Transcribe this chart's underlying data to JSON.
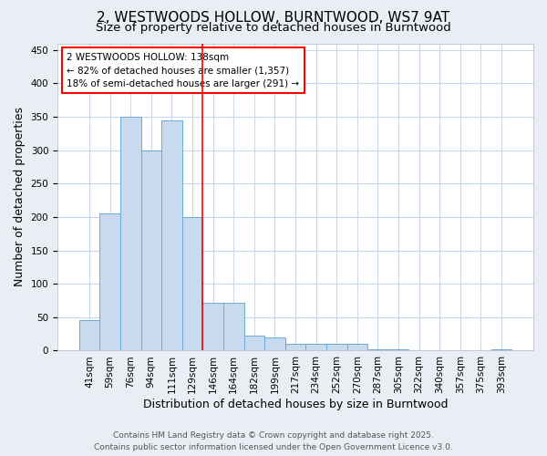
{
  "title": "2, WESTWOODS HOLLOW, BURNTWOOD, WS7 9AT",
  "subtitle": "Size of property relative to detached houses in Burntwood",
  "xlabel": "Distribution of detached houses by size in Burntwood",
  "ylabel": "Number of detached properties",
  "categories": [
    "41sqm",
    "59sqm",
    "76sqm",
    "94sqm",
    "111sqm",
    "129sqm",
    "146sqm",
    "164sqm",
    "182sqm",
    "199sqm",
    "217sqm",
    "234sqm",
    "252sqm",
    "270sqm",
    "287sqm",
    "305sqm",
    "322sqm",
    "340sqm",
    "357sqm",
    "375sqm",
    "393sqm"
  ],
  "values": [
    45,
    205,
    350,
    300,
    345,
    200,
    72,
    72,
    22,
    20,
    10,
    10,
    10,
    10,
    2,
    2,
    0,
    0,
    0,
    0,
    2
  ],
  "bar_color": "#c8daed",
  "bar_edgecolor": "#6aaad4",
  "grid_color": "#c8d8e8",
  "bar_width": 1.0,
  "ylim": [
    0,
    460
  ],
  "yticks": [
    0,
    50,
    100,
    150,
    200,
    250,
    300,
    350,
    400,
    450
  ],
  "vline_x": 5.5,
  "vline_color": "red",
  "annotation_text": "2 WESTWOODS HOLLOW: 138sqm\n← 82% of detached houses are smaller (1,357)\n18% of semi-detached houses are larger (291) →",
  "footer1": "Contains HM Land Registry data © Crown copyright and database right 2025.",
  "footer2": "Contains public sector information licensed under the Open Government Licence v3.0.",
  "title_fontsize": 11,
  "subtitle_fontsize": 9.5,
  "axis_label_fontsize": 9,
  "tick_fontsize": 7.5,
  "annotation_fontsize": 7.5,
  "footer_fontsize": 6.5,
  "background_color": "#e8eef4",
  "plot_background_color": "#ffffff"
}
